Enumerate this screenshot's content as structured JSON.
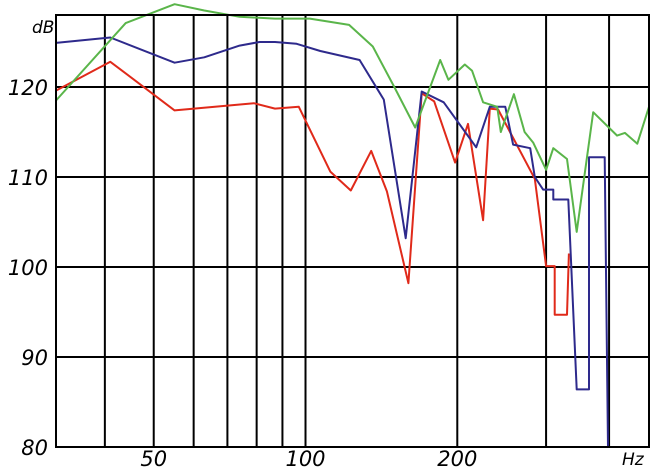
{
  "chart_data": {
    "type": "line",
    "title": "",
    "ylabel": "dB",
    "xlabel": "Hz",
    "x_scale": "log",
    "xlim": [
      32,
      480
    ],
    "ylim": [
      80,
      128
    ],
    "grid": true,
    "legend": "none",
    "y_ticks": [
      {
        "value": 80,
        "label": "80"
      },
      {
        "value": 90,
        "label": "90"
      },
      {
        "value": 100,
        "label": "100"
      },
      {
        "value": 110,
        "label": "110"
      },
      {
        "value": 120,
        "label": "120"
      }
    ],
    "x_ticks": [
      {
        "value": 50,
        "label": "50"
      },
      {
        "value": 100,
        "label": "100"
      },
      {
        "value": 200,
        "label": "200"
      }
    ],
    "x_gridlines": [
      40,
      50,
      60,
      70,
      80,
      90,
      100,
      200,
      300,
      400
    ],
    "series": [
      {
        "color": "#e02a1a",
        "points": [
          [
            32,
            119.6
          ],
          [
            41,
            122.8
          ],
          [
            55,
            117.4
          ],
          [
            79,
            118.2
          ],
          [
            87,
            117.6
          ],
          [
            97,
            117.8
          ],
          [
            112,
            110.6
          ],
          [
            123,
            108.5
          ],
          [
            135,
            112.9
          ],
          [
            145,
            108.4
          ],
          [
            160,
            98.2
          ],
          [
            170,
            119.3
          ],
          [
            180,
            118.4
          ],
          [
            198,
            111.6
          ],
          [
            210,
            115.9
          ],
          [
            225,
            105.2
          ],
          [
            232,
            117.6
          ],
          [
            241,
            117.5
          ],
          [
            285,
            109.8
          ],
          [
            300,
            100.1
          ],
          [
            312,
            100.1
          ],
          [
            312,
            94.7
          ],
          [
            330,
            94.7
          ],
          [
            333,
            101.5
          ]
        ]
      },
      {
        "color": "#2e2a8c",
        "points": [
          [
            32,
            124.9
          ],
          [
            41,
            125.5
          ],
          [
            55,
            122.7
          ],
          [
            63,
            123.3
          ],
          [
            74,
            124.6
          ],
          [
            81,
            125.0
          ],
          [
            87,
            125.0
          ],
          [
            96,
            124.8
          ],
          [
            107,
            124.0
          ],
          [
            128,
            123.0
          ],
          [
            143,
            118.6
          ],
          [
            158,
            103.2
          ],
          [
            170,
            119.5
          ],
          [
            188,
            118.3
          ],
          [
            218,
            113.3
          ],
          [
            232,
            117.8
          ],
          [
            249,
            117.8
          ],
          [
            258,
            113.6
          ],
          [
            279,
            113.2
          ],
          [
            285,
            110.0
          ],
          [
            296,
            108.6
          ],
          [
            310,
            108.6
          ],
          [
            310,
            107.5
          ],
          [
            332,
            107.5
          ],
          [
            345,
            86.4
          ],
          [
            365,
            86.4
          ],
          [
            365,
            112.2
          ],
          [
            392,
            112.2
          ],
          [
            398,
            80
          ]
        ]
      },
      {
        "color": "#5ab54a",
        "points": [
          [
            32,
            118.5
          ],
          [
            44,
            127.1
          ],
          [
            55,
            129.2
          ],
          [
            63,
            128.5
          ],
          [
            74,
            127.8
          ],
          [
            87,
            127.6
          ],
          [
            102,
            127.6
          ],
          [
            122,
            126.9
          ],
          [
            136,
            124.5
          ],
          [
            150,
            120.0
          ],
          [
            165,
            115.5
          ],
          [
            185,
            123.0
          ],
          [
            192,
            120.8
          ],
          [
            207,
            122.5
          ],
          [
            214,
            121.8
          ],
          [
            225,
            118.3
          ],
          [
            240,
            117.8
          ],
          [
            244,
            115.0
          ],
          [
            259,
            119.2
          ],
          [
            272,
            115.0
          ],
          [
            283,
            113.8
          ],
          [
            300,
            110.8
          ],
          [
            310,
            113.2
          ],
          [
            330,
            112.0
          ],
          [
            345,
            103.9
          ],
          [
            372,
            117.2
          ],
          [
            415,
            114.6
          ],
          [
            430,
            114.9
          ],
          [
            455,
            113.7
          ],
          [
            480,
            117.8
          ]
        ]
      }
    ]
  }
}
